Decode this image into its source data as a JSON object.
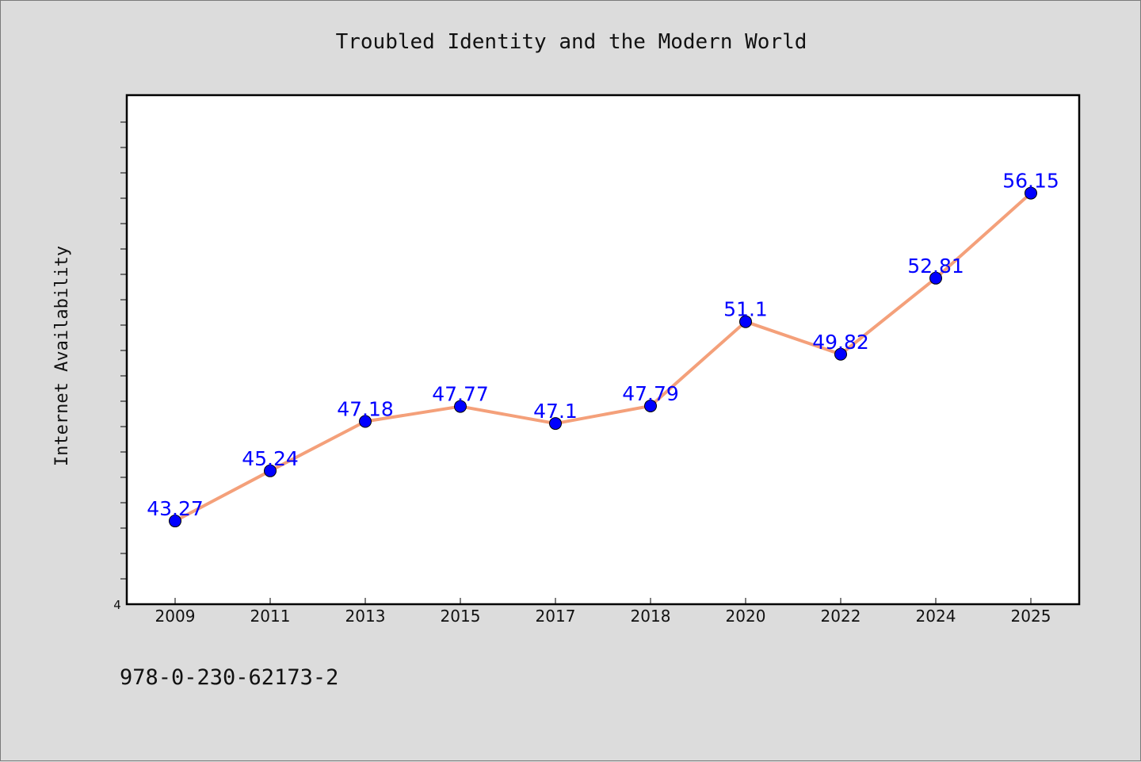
{
  "chart_data": {
    "type": "line",
    "title": "Troubled Identity and the Modern World",
    "ylabel": "Internet Availability",
    "xlabel": "",
    "y_axis_visible_label": "4",
    "categories": [
      "2009",
      "2011",
      "2013",
      "2015",
      "2017",
      "2018",
      "2020",
      "2022",
      "2024",
      "2025"
    ],
    "series": [
      {
        "values": [
          43.27,
          45.24,
          47.18,
          47.77,
          47.1,
          47.79,
          51.1,
          49.82,
          52.81,
          56.15
        ],
        "data_labels": [
          "43.27",
          "45.24",
          "47.18",
          "47.77",
          "47.1",
          "47.79",
          "51.1",
          "49.82",
          "52.81",
          "56.15"
        ],
        "line_color": "#f4a07a",
        "marker_color": "#0000ff"
      }
    ],
    "ylim": [
      40,
      60
    ],
    "grid": false,
    "legend": "none"
  },
  "footer": {
    "isbn": "978-0-230-62173-2"
  },
  "colors": {
    "background": "#dcdcdc",
    "plot_background": "#ffffff",
    "line": "#f4a07a",
    "marker": "#0000ff",
    "data_label": "#0000ff"
  }
}
